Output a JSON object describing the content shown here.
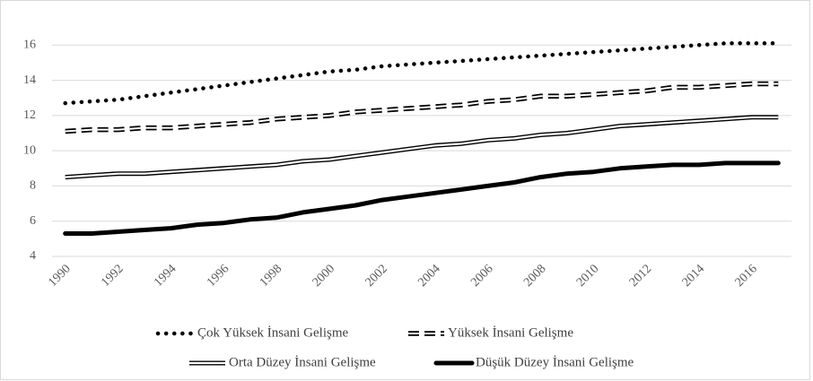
{
  "chart_data": {
    "type": "line",
    "categories": [
      "1990",
      null,
      "1992",
      null,
      "1994",
      null,
      "1996",
      null,
      "1998",
      null,
      "2000",
      null,
      "2002",
      null,
      "2004",
      null,
      "2006",
      null,
      "2008",
      null,
      "2010",
      null,
      "2012",
      null,
      "2014",
      null,
      "2016",
      null
    ],
    "series": [
      {
        "name": "Çok Yüksek İnsani Gelişme",
        "color": "#000000",
        "style": "dotted",
        "values": [
          12.7,
          12.8,
          12.9,
          13.1,
          13.3,
          13.5,
          13.7,
          13.9,
          14.1,
          14.3,
          14.5,
          14.6,
          14.8,
          14.9,
          15.0,
          15.1,
          15.2,
          15.3,
          15.4,
          15.5,
          15.6,
          15.7,
          15.8,
          15.9,
          16.0,
          16.1,
          16.1,
          16.1
        ]
      },
      {
        "name": "Yüksek İnsani Gelişme",
        "color": "#000000",
        "style": "dashed-double",
        "values": [
          11.1,
          11.2,
          11.2,
          11.3,
          11.3,
          11.4,
          11.5,
          11.6,
          11.8,
          11.9,
          12.0,
          12.2,
          12.3,
          12.4,
          12.5,
          12.6,
          12.8,
          12.9,
          13.1,
          13.1,
          13.2,
          13.3,
          13.4,
          13.6,
          13.6,
          13.7,
          13.8,
          13.8
        ]
      },
      {
        "name": "Orta Düzey İnsani Gelişme",
        "color": "#000000",
        "style": "double",
        "values": [
          8.5,
          8.6,
          8.7,
          8.7,
          8.8,
          8.9,
          9.0,
          9.1,
          9.2,
          9.4,
          9.5,
          9.7,
          9.9,
          10.1,
          10.3,
          10.4,
          10.6,
          10.7,
          10.9,
          11.0,
          11.2,
          11.4,
          11.5,
          11.6,
          11.7,
          11.8,
          11.9,
          11.9
        ]
      },
      {
        "name": "Düşük Düzey İnsani Gelişme",
        "color": "#000000",
        "style": "solid",
        "values": [
          5.3,
          5.3,
          5.4,
          5.5,
          5.6,
          5.8,
          5.9,
          6.1,
          6.2,
          6.5,
          6.7,
          6.9,
          7.2,
          7.4,
          7.6,
          7.8,
          8.0,
          8.2,
          8.5,
          8.7,
          8.8,
          9.0,
          9.1,
          9.2,
          9.2,
          9.3,
          9.3,
          9.3
        ]
      }
    ],
    "ylim": [
      4,
      18
    ],
    "yticks": [
      4,
      6,
      8,
      10,
      12,
      14,
      16
    ],
    "grid": true,
    "legend": "bottom"
  }
}
